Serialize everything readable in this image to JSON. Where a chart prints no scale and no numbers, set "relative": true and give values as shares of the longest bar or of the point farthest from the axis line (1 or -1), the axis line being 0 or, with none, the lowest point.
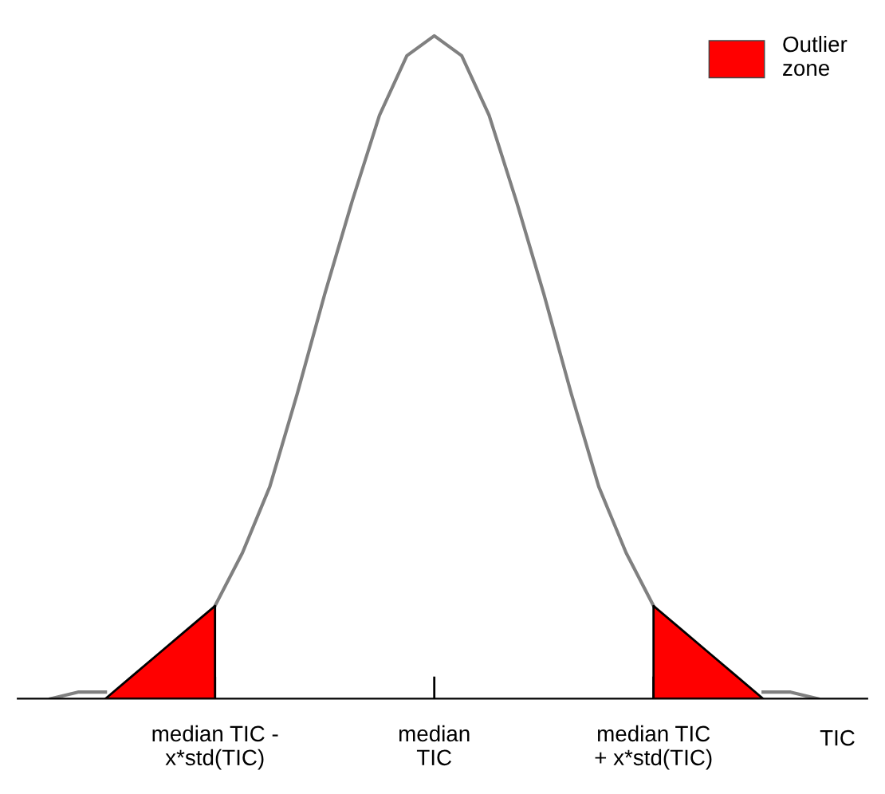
{
  "chart_data": {
    "type": "line",
    "relative": true,
    "xlabel": "TIC",
    "categories": [
      null,
      null,
      null,
      null,
      null,
      null,
      "median TIC -\nx*std(TIC)",
      null,
      null,
      null,
      null,
      null,
      null,
      null,
      "median\nTIC",
      null,
      null,
      null,
      null,
      null,
      null,
      null,
      "median TIC\n+ x*std(TIC)",
      null,
      null,
      null,
      null,
      null,
      null
    ],
    "series": [
      {
        "color": "#808080",
        "values": [
          0.0,
          0.01,
          0.01,
          null,
          null,
          null,
          0.14,
          0.22,
          0.32,
          0.46,
          0.61,
          0.75,
          0.88,
          0.97,
          1.0,
          0.97,
          0.88,
          0.75,
          0.61,
          0.46,
          0.32,
          0.22,
          0.14,
          null,
          null,
          null,
          0.01,
          0.01,
          0.0
        ]
      },
      {
        "type": "area",
        "name": "Outlier\nzone",
        "color": "#ff0000",
        "values": [
          null,
          null,
          0.0,
          0.035,
          0.07,
          0.105,
          0.14,
          null,
          null,
          null,
          null,
          null,
          null,
          null,
          null,
          null,
          null,
          null,
          null,
          null,
          null,
          null,
          null,
          null,
          null,
          null,
          null,
          null,
          null
        ]
      },
      {
        "type": "area",
        "color": "#ff0000",
        "values": [
          null,
          null,
          null,
          null,
          null,
          null,
          null,
          null,
          null,
          null,
          null,
          null,
          null,
          null,
          null,
          null,
          null,
          null,
          null,
          null,
          null,
          null,
          0.14,
          0.105,
          0.07,
          0.035,
          0.0,
          null,
          null
        ]
      }
    ],
    "legend": "top right",
    "grid": false,
    "marker": "none"
  }
}
